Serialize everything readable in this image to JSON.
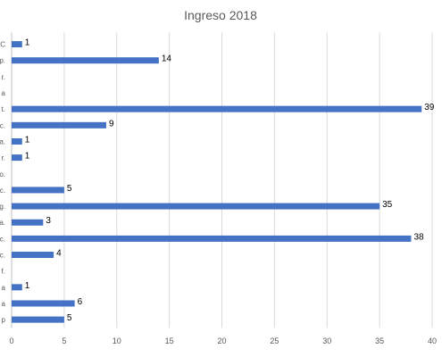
{
  "chart_data": {
    "type": "bar",
    "orientation": "horizontal",
    "title": "Ingreso 2018",
    "categories": [
      "C",
      "p.",
      "r.",
      "a",
      "t.",
      "c.",
      "a.",
      "r.",
      "o.",
      "c.",
      "g.",
      "a.",
      "c.",
      "c.",
      "f.",
      "a",
      "a",
      "p"
    ],
    "values": [
      1,
      14,
      null,
      null,
      39,
      9,
      1,
      1,
      null,
      5,
      35,
      3,
      38,
      4,
      null,
      1,
      6,
      5
    ],
    "x_ticks": [
      "0",
      "5",
      "10",
      "15",
      "20",
      "25",
      "30",
      "35",
      "40"
    ],
    "xlim": [
      0,
      40
    ],
    "grid": true,
    "legend": "none",
    "bar_color": "#4472c4"
  }
}
